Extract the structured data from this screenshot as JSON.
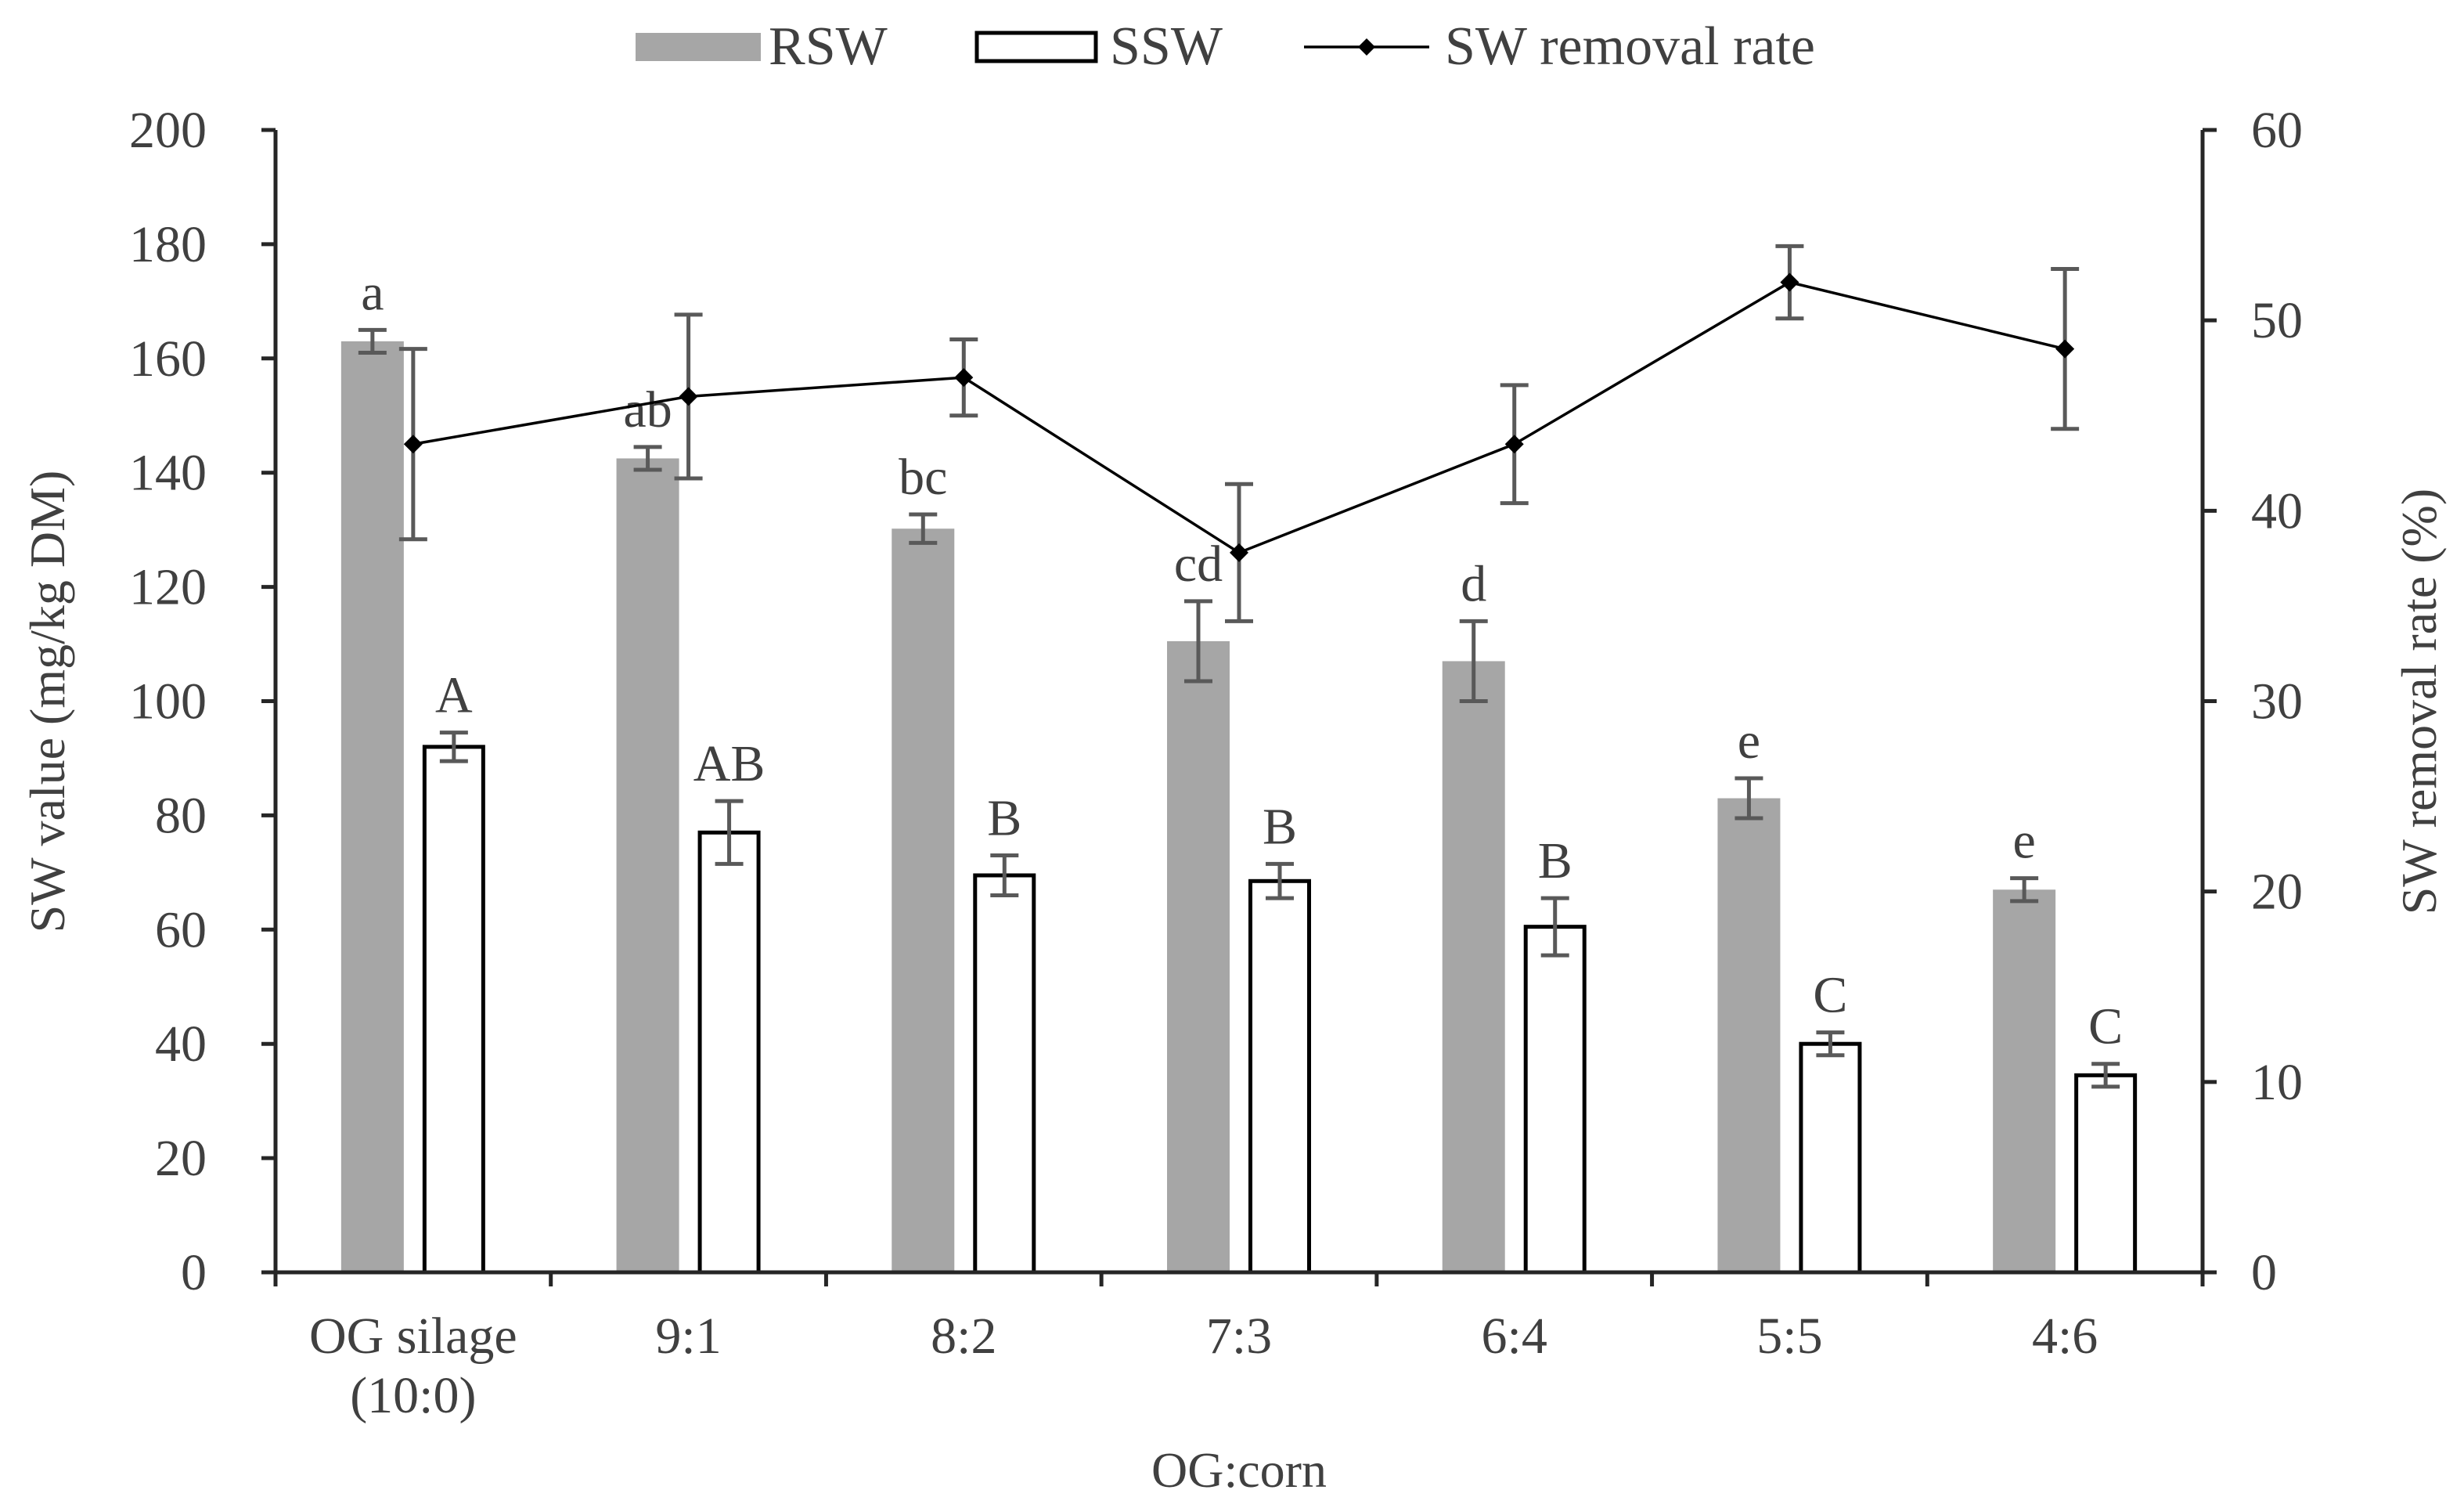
{
  "chart_data": {
    "type": "bar",
    "categories": [
      "OG silage\n(10:0)",
      "9:1",
      "8:2",
      "7:3",
      "6:4",
      "5:5",
      "4:6"
    ],
    "xlabel": "OG:corn",
    "ylabel": "SW value (mg/kg DM)",
    "y2label": "SW removal rate (%)",
    "ylim": [
      0,
      200
    ],
    "yticks": [
      0,
      20,
      40,
      60,
      80,
      100,
      120,
      140,
      160,
      180,
      200
    ],
    "y2lim": [
      0,
      60
    ],
    "y2ticks": [
      0,
      10,
      20,
      30,
      40,
      50,
      60
    ],
    "grid": false,
    "legend_position": "top-center",
    "series": [
      {
        "name": "RSW",
        "type": "bar",
        "axis": "left",
        "color": "#a6a6a6",
        "values": [
          163,
          142.5,
          130.2,
          110.5,
          107,
          83,
          67
        ],
        "errors": [
          2,
          2,
          2.5,
          7,
          7,
          3.5,
          2
        ],
        "letters": [
          "a",
          "ab",
          "bc",
          "cd",
          "d",
          "e",
          "e"
        ]
      },
      {
        "name": "SSW",
        "type": "bar",
        "axis": "left",
        "color": "#ffffff",
        "stroke": "#000000",
        "values": [
          92,
          77,
          69.5,
          68.5,
          60.5,
          40,
          34.5
        ],
        "errors": [
          2.5,
          5.5,
          3.5,
          3,
          5,
          2,
          2
        ],
        "letters": [
          "A",
          "AB",
          "B",
          "B",
          "B",
          "C",
          "C"
        ]
      },
      {
        "name": "SW removal rate",
        "type": "line",
        "axis": "right",
        "color": "#000000",
        "marker": "diamond",
        "values": [
          43.5,
          46,
          47,
          37.8,
          43.5,
          52,
          48.5
        ],
        "errors": [
          5,
          4.3,
          2,
          3.6,
          3.1,
          1.9,
          4.2
        ]
      }
    ]
  }
}
